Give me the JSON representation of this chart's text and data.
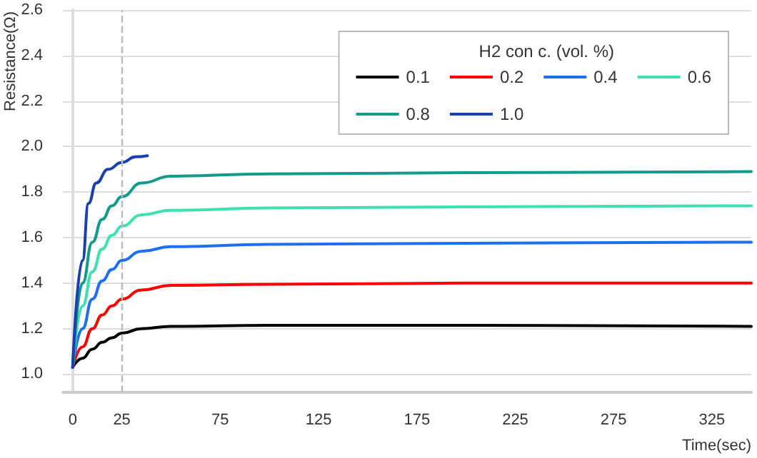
{
  "chart_data": {
    "type": "line",
    "xlabel": "Time(sec)",
    "ylabel": "Resistance(Ω)",
    "legend_title": "H2 con c. (vol. %)",
    "xlim": [
      -5,
      345
    ],
    "xticks": [
      0,
      25,
      75,
      125,
      175,
      225,
      275,
      325
    ],
    "ylim": [
      0.92,
      2.6
    ],
    "yticks": [
      {
        "value": 1,
        "label": "1.0"
      },
      1.2,
      1.4,
      1.6,
      1.8,
      {
        "value": 2,
        "label": "2.0"
      },
      2.2,
      2.4,
      2.6
    ],
    "grid": "y",
    "legend": "top right",
    "marker": "none",
    "line_style": "solid",
    "ref_lines": [
      {
        "axis": "x",
        "value": 25,
        "label": null,
        "color": "#bbbbbb",
        "line_style": "dashed"
      }
    ],
    "series": [
      {
        "name": "0.1",
        "color": "#000000",
        "x": [
          0,
          5,
          10,
          15,
          20,
          25,
          35,
          50,
          100,
          200,
          345
        ],
        "values": [
          1.03,
          1.07,
          1.11,
          1.14,
          1.16,
          1.18,
          1.2,
          1.21,
          1.215,
          1.215,
          1.21
        ]
      },
      {
        "name": "0.2",
        "color": "#ff0000",
        "x": [
          0,
          5,
          10,
          15,
          20,
          25,
          35,
          50,
          100,
          200,
          345
        ],
        "values": [
          1.03,
          1.12,
          1.2,
          1.26,
          1.3,
          1.33,
          1.37,
          1.39,
          1.395,
          1.4,
          1.4
        ]
      },
      {
        "name": "0.4",
        "color": "#1e6ff0",
        "x": [
          0,
          5,
          10,
          15,
          20,
          25,
          35,
          50,
          100,
          200,
          345
        ],
        "values": [
          1.03,
          1.2,
          1.33,
          1.41,
          1.46,
          1.5,
          1.54,
          1.56,
          1.57,
          1.575,
          1.58
        ]
      },
      {
        "name": "0.6",
        "color": "#3ee0b0",
        "x": [
          0,
          5,
          10,
          15,
          20,
          25,
          35,
          50,
          100,
          200,
          345
        ],
        "values": [
          1.03,
          1.3,
          1.45,
          1.55,
          1.61,
          1.65,
          1.7,
          1.72,
          1.73,
          1.735,
          1.74
        ]
      },
      {
        "name": "0.8",
        "color": "#129a8a",
        "x": [
          0,
          5,
          10,
          15,
          20,
          25,
          35,
          50,
          100,
          200,
          345
        ],
        "values": [
          1.03,
          1.4,
          1.58,
          1.68,
          1.74,
          1.78,
          1.84,
          1.87,
          1.88,
          1.885,
          1.89
        ]
      },
      {
        "name": "1.0",
        "color": "#1a3fb0",
        "x": [
          0,
          5,
          8,
          12,
          18,
          25,
          32,
          38
        ],
        "values": [
          1.03,
          1.5,
          1.75,
          1.84,
          1.9,
          1.93,
          1.955,
          1.96
        ]
      }
    ]
  }
}
